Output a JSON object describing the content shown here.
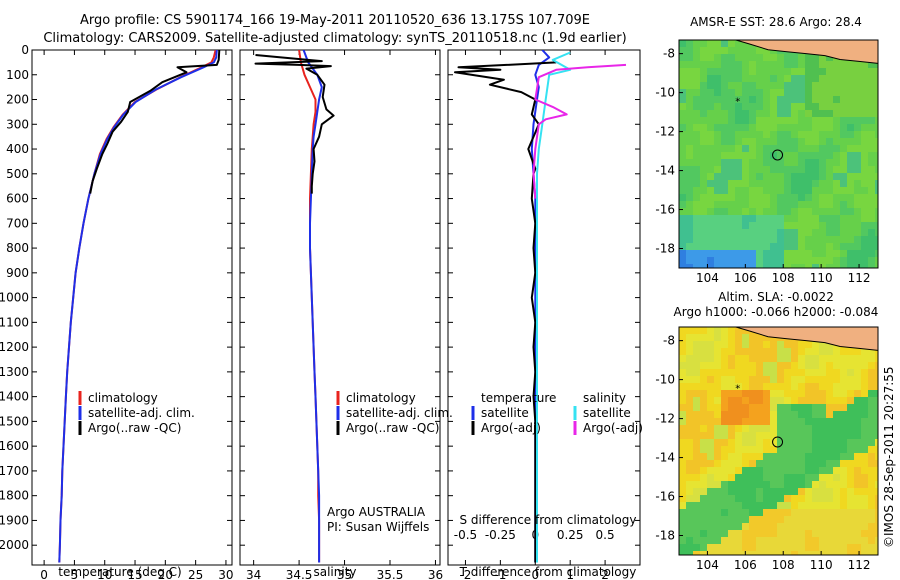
{
  "header": {
    "line1": "Argo profile: CS 5901174_166 19-May-2011 20110520_636 13.175S 107.709E",
    "line2": "Climatology: CARS2009. Satellite-adjusted climatology: synTS_20110518.nc (1.9d earlier)"
  },
  "chart_data": [
    {
      "type": "line",
      "id": "temperature",
      "xlabel": "temperature (deg C)",
      "xlim": [
        -2,
        31
      ],
      "xticks": [
        0,
        5,
        10,
        15,
        20,
        25,
        30
      ],
      "ylim": [
        2080,
        0
      ],
      "yticks": [
        0,
        100,
        200,
        300,
        400,
        500,
        600,
        700,
        800,
        900,
        1000,
        1100,
        1200,
        1300,
        1400,
        1500,
        1600,
        1700,
        1800,
        1900,
        2000
      ],
      "legend": [
        "climatology",
        "satellite-adj. clim.",
        "Argo(..raw -QC)"
      ],
      "legend_position": "lower-right",
      "series": [
        {
          "name": "climatology",
          "color": "#e8231e",
          "points": [
            [
              28.3,
              0
            ],
            [
              28.0,
              30
            ],
            [
              27.6,
              50
            ],
            [
              26.0,
              70
            ],
            [
              22.5,
              110
            ],
            [
              18.5,
              160
            ],
            [
              15.0,
              210
            ],
            [
              13.0,
              260
            ],
            [
              11.5,
              310
            ],
            [
              10.3,
              360
            ],
            [
              9.2,
              420
            ],
            [
              8.3,
              500
            ],
            [
              7.3,
              600
            ],
            [
              6.5,
              700
            ],
            [
              5.8,
              800
            ],
            [
              5.2,
              900
            ],
            [
              4.8,
              1000
            ],
            [
              4.4,
              1100
            ],
            [
              4.1,
              1200
            ],
            [
              3.8,
              1300
            ],
            [
              3.6,
              1400
            ],
            [
              3.4,
              1500
            ],
            [
              3.2,
              1600
            ],
            [
              3.0,
              1700
            ],
            [
              2.9,
              1800
            ],
            [
              2.7,
              1900
            ],
            [
              2.6,
              2000
            ],
            [
              2.5,
              2070
            ]
          ]
        },
        {
          "name": "satellite-adj. clim.",
          "color": "#1e2fe8",
          "points": [
            [
              28.5,
              0
            ],
            [
              28.4,
              30
            ],
            [
              28.0,
              50
            ],
            [
              26.3,
              70
            ],
            [
              22.6,
              110
            ],
            [
              18.4,
              160
            ],
            [
              15.1,
              210
            ],
            [
              13.1,
              260
            ],
            [
              11.6,
              310
            ],
            [
              10.4,
              360
            ],
            [
              9.3,
              420
            ],
            [
              8.3,
              500
            ],
            [
              7.3,
              600
            ],
            [
              6.5,
              700
            ],
            [
              5.8,
              800
            ],
            [
              5.2,
              900
            ],
            [
              4.8,
              1000
            ],
            [
              4.4,
              1100
            ],
            [
              4.1,
              1200
            ],
            [
              3.8,
              1300
            ],
            [
              3.6,
              1400
            ],
            [
              3.4,
              1500
            ],
            [
              3.2,
              1600
            ],
            [
              3.0,
              1700
            ],
            [
              2.9,
              1800
            ],
            [
              2.7,
              1900
            ],
            [
              2.6,
              2000
            ],
            [
              2.5,
              2070
            ]
          ]
        },
        {
          "name": "Argo(..raw -QC)",
          "color": "#000000",
          "points": [
            [
              28.9,
              0
            ],
            [
              28.8,
              40
            ],
            [
              28.5,
              60
            ],
            [
              22.0,
              70
            ],
            [
              23.5,
              90
            ],
            [
              19.5,
              130
            ],
            [
              17.5,
              165
            ],
            [
              14.2,
              210
            ],
            [
              13.8,
              250
            ],
            [
              12.7,
              290
            ],
            [
              11.3,
              330
            ],
            [
              10.4,
              380
            ],
            [
              9.6,
              420
            ],
            [
              8.7,
              480
            ],
            [
              8.0,
              530
            ],
            [
              7.6,
              580
            ]
          ]
        }
      ]
    },
    {
      "type": "line",
      "id": "salinity",
      "xlabel": "salinity",
      "xlim": [
        33.85,
        36.05
      ],
      "xticks": [
        34,
        34.5,
        35,
        35.5,
        36
      ],
      "ylim": [
        2080,
        0
      ],
      "legend": [
        "climatology",
        "satellite-adj. clim.",
        "Argo(..raw -QC)"
      ],
      "legend_position": "lower-right",
      "annotations": [
        "Argo AUSTRALIA",
        "PI: Susan Wijffels"
      ],
      "series": [
        {
          "name": "climatology",
          "color": "#e8231e",
          "points": [
            [
              34.5,
              0
            ],
            [
              34.52,
              50
            ],
            [
              34.56,
              100
            ],
            [
              34.62,
              150
            ],
            [
              34.68,
              200
            ],
            [
              34.68,
              250
            ],
            [
              34.66,
              300
            ],
            [
              34.65,
              350
            ],
            [
              34.64,
              400
            ],
            [
              34.63,
              500
            ],
            [
              34.62,
              600
            ],
            [
              34.62,
              700
            ],
            [
              34.62,
              800
            ],
            [
              34.63,
              900
            ],
            [
              34.64,
              1000
            ],
            [
              34.65,
              1100
            ],
            [
              34.66,
              1200
            ],
            [
              34.67,
              1300
            ],
            [
              34.68,
              1400
            ],
            [
              34.69,
              1500
            ],
            [
              34.7,
              1600
            ],
            [
              34.71,
              1700
            ],
            [
              34.71,
              1800
            ],
            [
              34.72,
              1900
            ],
            [
              34.72,
              2000
            ],
            [
              34.72,
              2070
            ]
          ]
        },
        {
          "name": "satellite-adj. clim.",
          "color": "#1e2fe8",
          "points": [
            [
              34.55,
              0
            ],
            [
              34.6,
              50
            ],
            [
              34.7,
              100
            ],
            [
              34.75,
              150
            ],
            [
              34.72,
              200
            ],
            [
              34.7,
              250
            ],
            [
              34.68,
              300
            ],
            [
              34.66,
              350
            ],
            [
              34.65,
              400
            ],
            [
              34.64,
              500
            ],
            [
              34.63,
              600
            ],
            [
              34.62,
              700
            ],
            [
              34.62,
              800
            ],
            [
              34.63,
              900
            ],
            [
              34.64,
              1000
            ],
            [
              34.65,
              1100
            ],
            [
              34.66,
              1200
            ],
            [
              34.67,
              1300
            ],
            [
              34.68,
              1400
            ],
            [
              34.69,
              1500
            ],
            [
              34.7,
              1600
            ],
            [
              34.71,
              1700
            ],
            [
              34.72,
              1800
            ],
            [
              34.72,
              1900
            ],
            [
              34.72,
              2000
            ],
            [
              34.72,
              2070
            ]
          ]
        },
        {
          "name": "Argo(..raw -QC)",
          "color": "#000000",
          "points": [
            [
              34.02,
              20
            ],
            [
              34.3,
              30
            ],
            [
              34.75,
              45
            ],
            [
              34.02,
              55
            ],
            [
              34.5,
              60
            ],
            [
              34.85,
              65
            ],
            [
              34.58,
              75
            ],
            [
              34.7,
              100
            ],
            [
              34.78,
              140
            ],
            [
              34.76,
              190
            ],
            [
              34.8,
              240
            ],
            [
              34.88,
              265
            ],
            [
              34.75,
              300
            ],
            [
              34.72,
              350
            ],
            [
              34.66,
              400
            ],
            [
              34.67,
              450
            ],
            [
              34.65,
              500
            ],
            [
              34.64,
              550
            ],
            [
              34.64,
              580
            ]
          ]
        }
      ]
    },
    {
      "type": "line",
      "id": "difference",
      "xlabel": "T difference from climatology",
      "xlabel_top": "S difference from climatology",
      "xlim": [
        -2.5,
        3.0
      ],
      "xticks": [
        -2,
        -1,
        0,
        1,
        2
      ],
      "xticks_top": [
        "-0.5",
        "-0.25",
        "0",
        "0.25",
        "0.5"
      ],
      "ylim": [
        2080,
        0
      ],
      "legend_left_title": "temperature",
      "legend_right_title": "salinity",
      "legend_position": "lower-center",
      "series": [
        {
          "name": "satellite",
          "group": "temperature",
          "color": "#1e2fe8",
          "points": [
            [
              0.2,
              0
            ],
            [
              0.4,
              30
            ],
            [
              0.1,
              60
            ],
            [
              0.0,
              100
            ],
            [
              0.1,
              150
            ],
            [
              0.05,
              200
            ],
            [
              -0.05,
              300
            ],
            [
              -0.1,
              400
            ],
            [
              -0.05,
              500
            ],
            [
              0.0,
              600
            ],
            [
              0.0,
              800
            ],
            [
              0.0,
              1000
            ],
            [
              0.0,
              1500
            ],
            [
              0.0,
              2070
            ]
          ]
        },
        {
          "name": "Argo(-adj)",
          "group": "temperature",
          "color": "#000000",
          "points": [
            [
              0.6,
              50
            ],
            [
              -2.2,
              70
            ],
            [
              -1.0,
              80
            ],
            [
              -2.3,
              90
            ],
            [
              -0.9,
              120
            ],
            [
              -1.3,
              140
            ],
            [
              -0.4,
              170
            ],
            [
              0.0,
              200
            ],
            [
              -0.1,
              260
            ],
            [
              0.1,
              300
            ],
            [
              -0.2,
              400
            ],
            [
              0.0,
              480
            ],
            [
              -0.05,
              500
            ],
            [
              -0.1,
              600
            ],
            [
              0.0,
              700
            ],
            [
              -0.05,
              800
            ],
            [
              0.0,
              900
            ],
            [
              -0.1,
              1000
            ],
            [
              0.0,
              1100
            ],
            [
              -0.05,
              1200
            ],
            [
              0.0,
              1300
            ],
            [
              -0.05,
              1400
            ],
            [
              0.0,
              1500
            ],
            [
              0.0,
              1700
            ],
            [
              0.0,
              2070
            ]
          ]
        },
        {
          "name": "satellite",
          "group": "salinity",
          "color": "#35e2f2",
          "points": [
            [
              1.0,
              10
            ],
            [
              0.5,
              40
            ],
            [
              1.0,
              80
            ],
            [
              0.4,
              100
            ],
            [
              0.3,
              200
            ],
            [
              0.2,
              300
            ],
            [
              0.1,
              400
            ],
            [
              0.05,
              500
            ],
            [
              0.05,
              600
            ],
            [
              0.05,
              800
            ],
            [
              0.05,
              1000
            ],
            [
              0.05,
              1500
            ],
            [
              0.05,
              2070
            ]
          ]
        },
        {
          "name": "Argo(-adj)",
          "group": "salinity",
          "color": "#e826e8",
          "points": [
            [
              2.6,
              60
            ],
            [
              1.5,
              70
            ],
            [
              0.6,
              80
            ],
            [
              0.1,
              110
            ],
            [
              0.0,
              200
            ],
            [
              0.5,
              230
            ],
            [
              0.9,
              260
            ],
            [
              0.3,
              280
            ],
            [
              0.1,
              300
            ],
            [
              0.0,
              400
            ],
            [
              -0.05,
              500
            ],
            [
              0.0,
              600
            ]
          ]
        }
      ]
    },
    {
      "type": "heatmap",
      "id": "sst_map",
      "title": "AMSR-E SST: 28.6  Argo: 28.4",
      "xlim": [
        102.5,
        113
      ],
      "xticks": [
        104,
        106,
        108,
        110,
        112
      ],
      "ylim": [
        -19,
        -7.3
      ],
      "yticks": [
        -8,
        -10,
        -12,
        -14,
        -16,
        -18
      ],
      "colormap": "green-dominant with blue patch bottom-left",
      "float_position": [
        107.7,
        -13.2
      ],
      "previous_position": [
        105.6,
        -10.4
      ]
    },
    {
      "type": "heatmap",
      "id": "sla_map",
      "title": "Altim. SLA: -0.0022",
      "subtitle": "Argo h1000: -0.066 h2000: -0.084",
      "xlim": [
        102.5,
        113
      ],
      "xticks": [
        104,
        106,
        108,
        110,
        112
      ],
      "ylim": [
        -19,
        -7.3
      ],
      "yticks": [
        -8,
        -10,
        -12,
        -14,
        -16,
        -18
      ],
      "colormap": "yellow-orange with green band",
      "float_position": [
        107.7,
        -13.2
      ],
      "previous_position": [
        105.6,
        -10.4
      ]
    }
  ],
  "footer": {
    "credit": "©IMOS 28-Sep-2011 20:27:55"
  }
}
